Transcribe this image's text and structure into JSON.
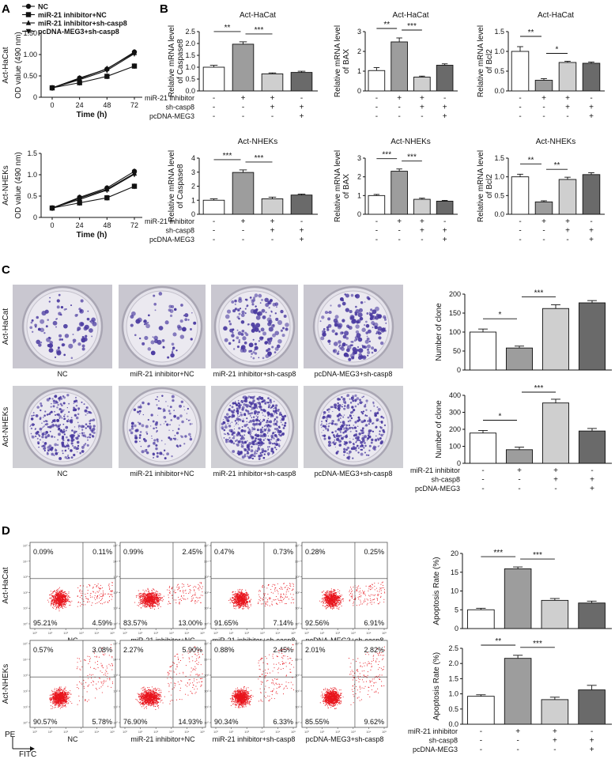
{
  "panels": {
    "A": "A",
    "B": "B",
    "C": "C",
    "D": "D"
  },
  "colors": {
    "bar_plain": "#ffffff",
    "bar_mid": "#9d9d9d",
    "bar_light": "#cfcfcf",
    "bar_dark": "#6a6a6a",
    "dot_red": "#e8141c",
    "plate_dye": "#4a3aa0"
  },
  "chart_data": [
    {
      "id": "A1",
      "type": "line",
      "ylabel": "OD value (490 nm)",
      "xlabel": "Time (h)",
      "sidelabel": "Act-HaCat",
      "x": [
        0,
        24,
        48,
        72
      ],
      "ylim": [
        0,
        1.5
      ],
      "yticks": [
        "0",
        "0.50",
        "1.00",
        "1.50"
      ],
      "xticks": [
        "0",
        "24",
        "48",
        "72"
      ],
      "series": [
        {
          "name": "NC",
          "marker": "circle",
          "values": [
            0.22,
            0.45,
            0.66,
            1.06
          ]
        },
        {
          "name": "miR-21 inhibitor+NC",
          "marker": "square",
          "values": [
            0.22,
            0.34,
            0.49,
            0.73
          ]
        },
        {
          "name": "miR-21 inhibitor+sh-casp8",
          "marker": "triangle-up",
          "values": [
            0.22,
            0.43,
            0.67,
            1.04
          ]
        },
        {
          "name": "pcDNA-MEG3+sh-casp8",
          "marker": "triangle-down",
          "values": [
            0.22,
            0.41,
            0.63,
            1.02
          ]
        }
      ]
    },
    {
      "id": "A2",
      "type": "line",
      "ylabel": "OD value (490 nm)",
      "xlabel": "Time (h)",
      "sidelabel": "Act-NHEKs",
      "x": [
        0,
        24,
        48,
        72
      ],
      "ylim": [
        0,
        1.5
      ],
      "yticks": [
        "0",
        "0.5",
        "1.0",
        "1.5"
      ],
      "xticks": [
        "0",
        "24",
        "48",
        "72"
      ],
      "series": [
        {
          "name": "NC",
          "marker": "circle",
          "values": [
            0.22,
            0.47,
            0.69,
            1.08
          ]
        },
        {
          "name": "miR-21 inhibitor+NC",
          "marker": "square",
          "values": [
            0.22,
            0.34,
            0.46,
            0.73
          ]
        },
        {
          "name": "miR-21 inhibitor+sh-casp8",
          "marker": "triangle-up",
          "values": [
            0.22,
            0.45,
            0.66,
            1.03
          ]
        },
        {
          "name": "pcDNA-MEG3+sh-casp8",
          "marker": "triangle-down",
          "values": [
            0.22,
            0.42,
            0.64,
            1.01
          ]
        }
      ]
    },
    {
      "id": "B1",
      "type": "bar",
      "title": "Act-HaCat",
      "ylabel": "Relative mRNA level of Caspase8",
      "ylim": [
        0,
        2.5
      ],
      "yticks": [
        "0.0",
        "0.5",
        "1.0",
        "1.5",
        "2.0",
        "2.5"
      ],
      "values": [
        1.0,
        1.97,
        0.72,
        0.78
      ],
      "errors": [
        0.08,
        0.1,
        0.04,
        0.05
      ],
      "sig": [
        {
          "from": 0,
          "to": 1,
          "label": "**"
        },
        {
          "from": 1,
          "to": 2,
          "label": "***"
        }
      ]
    },
    {
      "id": "B2",
      "type": "bar",
      "title": "Act-HaCat",
      "ylabel": "Relative mRNA level of BAX",
      "ylim": [
        0,
        3
      ],
      "yticks": [
        "0",
        "1",
        "2",
        "3"
      ],
      "values": [
        1.03,
        2.48,
        0.7,
        1.3
      ],
      "errors": [
        0.15,
        0.2,
        0.05,
        0.07
      ],
      "sig": [
        {
          "from": 0,
          "to": 1,
          "label": "**"
        },
        {
          "from": 1,
          "to": 2,
          "label": "***"
        }
      ]
    },
    {
      "id": "B3",
      "type": "bar",
      "title": "Act-HaCat",
      "ylabel": "Relative mRNA level of Bcl2",
      "ylim": [
        0,
        1.5
      ],
      "yticks": [
        "0.0",
        "0.5",
        "1.0",
        "1.5"
      ],
      "values": [
        1.0,
        0.27,
        0.72,
        0.7
      ],
      "errors": [
        0.12,
        0.04,
        0.03,
        0.03
      ],
      "sig": [
        {
          "from": 0,
          "to": 1,
          "label": "**"
        },
        {
          "from": 1,
          "to": 2,
          "label": "*"
        }
      ]
    },
    {
      "id": "B4",
      "type": "bar",
      "title": "Act-NHEKs",
      "ylabel": "Relative mRNA level of Caspase8",
      "ylim": [
        0,
        4
      ],
      "yticks": [
        "0",
        "1",
        "2",
        "3",
        "4"
      ],
      "values": [
        1.0,
        2.98,
        1.1,
        1.37
      ],
      "errors": [
        0.1,
        0.18,
        0.12,
        0.07
      ],
      "sig": [
        {
          "from": 0,
          "to": 1,
          "label": "***"
        },
        {
          "from": 1,
          "to": 2,
          "label": "***"
        }
      ]
    },
    {
      "id": "B5",
      "type": "bar",
      "title": "Act-NHEKs",
      "ylabel": "Relative mRNA level of BAX",
      "ylim": [
        0,
        3
      ],
      "yticks": [
        "0",
        "1",
        "2",
        "3"
      ],
      "values": [
        1.0,
        2.3,
        0.8,
        0.7
      ],
      "errors": [
        0.06,
        0.12,
        0.06,
        0.04
      ],
      "sig": [
        {
          "from": 0,
          "to": 1,
          "label": "***"
        },
        {
          "from": 1,
          "to": 2,
          "label": "***"
        }
      ]
    },
    {
      "id": "B6",
      "type": "bar",
      "title": "Act-NHEKs",
      "ylabel": "Relative mRNA level of Bcl2",
      "ylim": [
        0,
        1.5
      ],
      "yticks": [
        "0.0",
        "0.5",
        "1.0",
        "1.5"
      ],
      "values": [
        1.0,
        0.33,
        0.93,
        1.06
      ],
      "errors": [
        0.07,
        0.03,
        0.06,
        0.05
      ],
      "sig": [
        {
          "from": 0,
          "to": 1,
          "label": "**"
        },
        {
          "from": 1,
          "to": 2,
          "label": "**"
        }
      ]
    },
    {
      "id": "C1",
      "type": "bar",
      "ylabel": "Number of clone",
      "ylim": [
        0,
        200
      ],
      "yticks": [
        "0",
        "50",
        "100",
        "150",
        "200"
      ],
      "values": [
        100,
        58,
        162,
        177
      ],
      "errors": [
        8,
        5,
        10,
        6
      ],
      "sig": [
        {
          "from": 0,
          "to": 1,
          "label": "*"
        },
        {
          "from": 1,
          "to": 2,
          "label": "***"
        }
      ]
    },
    {
      "id": "C2",
      "type": "bar",
      "ylabel": "Number of clone",
      "ylim": [
        0,
        400
      ],
      "yticks": [
        "0",
        "100",
        "200",
        "300",
        "400"
      ],
      "values": [
        178,
        80,
        355,
        190
      ],
      "errors": [
        15,
        15,
        22,
        15
      ],
      "sig": [
        {
          "from": 0,
          "to": 1,
          "label": "*"
        },
        {
          "from": 1,
          "to": 2,
          "label": "***"
        }
      ]
    },
    {
      "id": "D1",
      "type": "bar",
      "ylabel": "Apoptosis Rate (%)",
      "ylim": [
        0,
        20
      ],
      "yticks": [
        "0",
        "5",
        "10",
        "15",
        "20"
      ],
      "values": [
        5.0,
        15.9,
        7.5,
        6.8
      ],
      "errors": [
        0.4,
        0.5,
        0.5,
        0.5
      ],
      "sig": [
        {
          "from": 0,
          "to": 1,
          "label": "***"
        },
        {
          "from": 1,
          "to": 2,
          "label": "***"
        }
      ]
    },
    {
      "id": "D2",
      "type": "bar",
      "ylabel": "Apoptosis Rate (%)",
      "ylim": [
        0,
        2.5
      ],
      "yticks": [
        "0.0",
        "0.5",
        "1.0",
        "1.5",
        "2.0",
        "2.5"
      ],
      "values": [
        0.92,
        2.17,
        0.81,
        1.13
      ],
      "errors": [
        0.05,
        0.1,
        0.08,
        0.15
      ],
      "sig": [
        {
          "from": 0,
          "to": 1,
          "label": "**"
        },
        {
          "from": 1,
          "to": 2,
          "label": "***"
        }
      ]
    }
  ],
  "treatment_table": {
    "rows": [
      {
        "name": "miR-21 inhibitor",
        "signs": [
          "-",
          "+",
          "+",
          "-"
        ]
      },
      {
        "name": "sh-casp8",
        "signs": [
          "-",
          "-",
          "+",
          "+"
        ]
      },
      {
        "name": "pcDNA-MEG3",
        "signs": [
          "-",
          "-",
          "-",
          "+"
        ]
      }
    ]
  },
  "colony": {
    "rows": [
      "Act-HaCat",
      "Act-NHEKs"
    ],
    "labels": [
      "NC",
      "miR-21 inhibitor+NC",
      "miR-21 inhibitor+sh-casp8",
      "pcDNA-MEG3+sh-casp8"
    ]
  },
  "flow": {
    "rows": [
      "Act-HaCat",
      "Act-NHEKs"
    ],
    "labels": [
      "NC",
      "miR-21 inhibitor+NC",
      "miR-21 inhibitor+sh-casp8",
      "pcDNA-MEG3+sh-casp8"
    ],
    "axis_x": "FITC",
    "axis_y": "PE",
    "ticks": [
      "10⁰",
      "10¹",
      "10²",
      "10³",
      "10⁴",
      "10⁵"
    ],
    "quadrants": [
      [
        [
          "0.09%",
          "0.11%",
          "95.21%",
          "4.59%"
        ],
        [
          "0.99%",
          "2.45%",
          "83.57%",
          "13.00%"
        ],
        [
          "0.47%",
          "0.73%",
          "91.65%",
          "7.14%"
        ],
        [
          "0.28%",
          "0.25%",
          "92.56%",
          "6.91%"
        ]
      ],
      [
        [
          "0.57%",
          "3.08%",
          "90.57%",
          "5.78%"
        ],
        [
          "2.27%",
          "5.90%",
          "76.90%",
          "14.93%"
        ],
        [
          "0.88%",
          "2.45%",
          "90.34%",
          "6.33%"
        ],
        [
          "2.01%",
          "2.82%",
          "85.55%",
          "9.62%"
        ]
      ]
    ]
  }
}
